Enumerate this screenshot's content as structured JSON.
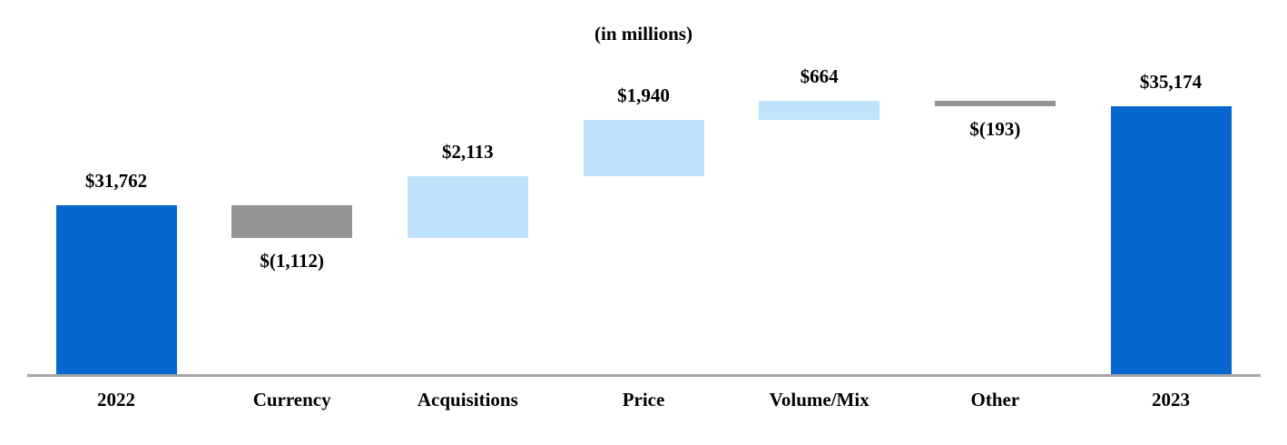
{
  "colors": {
    "total_bar": "#0668CE",
    "increase_bar": "#BFE3FC",
    "decrease_bar": "#949494",
    "axis_line": "#A5A5A5",
    "label_text": "#000000",
    "background": "#FFFFFF"
  },
  "chart_data": {
    "type": "bar",
    "subtype": "waterfall",
    "title": "(in millions)",
    "categories": [
      "2022",
      "Currency",
      "Acquisitions",
      "Price",
      "Volume/Mix",
      "Other",
      "2023"
    ],
    "bars": [
      {
        "category": "2022",
        "kind": "total",
        "value": 31762,
        "label": "$31,762"
      },
      {
        "category": "Currency",
        "kind": "delta",
        "value": -1112,
        "label": "$(1,112)"
      },
      {
        "category": "Acquisitions",
        "kind": "delta",
        "value": 2113,
        "label": "$2,113"
      },
      {
        "category": "Price",
        "kind": "delta",
        "value": 1940,
        "label": "$1,940"
      },
      {
        "category": "Volume/Mix",
        "kind": "delta",
        "value": 664,
        "label": "$664"
      },
      {
        "category": "Other",
        "kind": "delta",
        "value": -193,
        "label": "$(193)"
      },
      {
        "category": "2023",
        "kind": "total",
        "value": 35174,
        "label": "$35,174"
      }
    ],
    "running_levels": [
      31762,
      30650,
      32763,
      34703,
      35367,
      35174,
      35174
    ],
    "ylim": [
      25940,
      38870
    ],
    "grid": false,
    "legend": "none",
    "xlabel": "",
    "ylabel": ""
  }
}
